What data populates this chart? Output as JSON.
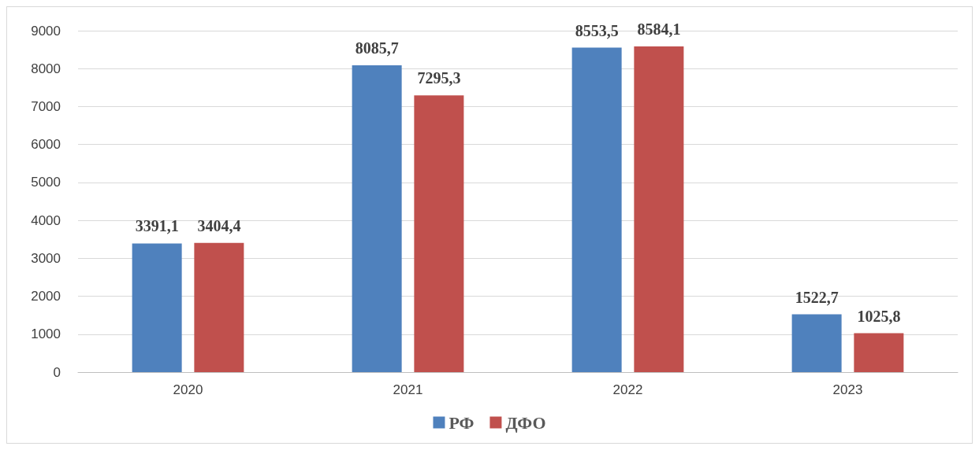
{
  "chart_data": {
    "type": "bar",
    "categories": [
      "2020",
      "2021",
      "2022",
      "2023"
    ],
    "series": [
      {
        "name": "РФ",
        "color": "#4f81bd",
        "values": [
          3391.1,
          8085.7,
          8553.5,
          1522.7
        ],
        "value_labels": [
          "3391,1",
          "8085,7",
          "8553,5",
          "1522,7"
        ]
      },
      {
        "name": "ДФО",
        "color": "#c0504d",
        "values": [
          3404.4,
          7295.3,
          8584.1,
          1025.8
        ],
        "value_labels": [
          "3404,4",
          "7295,3",
          "8584,1",
          "1025,8"
        ]
      }
    ],
    "ylim": [
      0,
      9000
    ],
    "yticks": [
      0,
      1000,
      2000,
      3000,
      4000,
      5000,
      6000,
      7000,
      8000,
      9000
    ],
    "grid": "y",
    "legend": "bottom"
  }
}
